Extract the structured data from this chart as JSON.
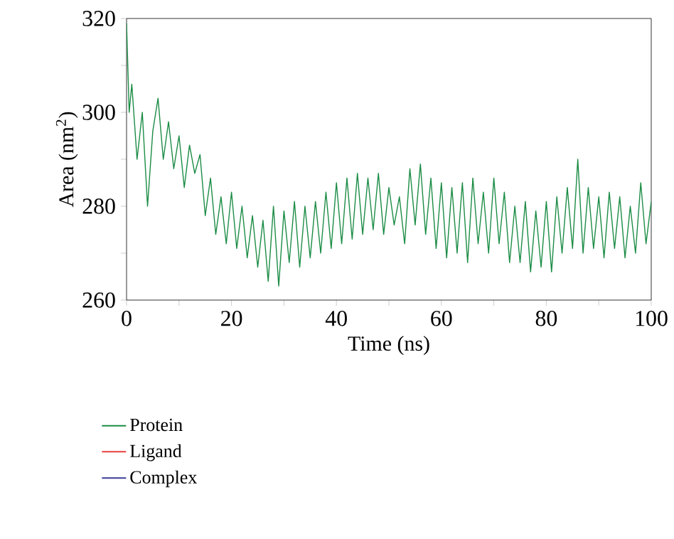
{
  "chart_data": {
    "type": "line",
    "xlabel": "Time (ns)",
    "ylabel": "Area (nm$^{2}$)",
    "xlim": [
      0,
      100
    ],
    "ylim": [
      260,
      320
    ],
    "xticks": [
      0,
      {
        "value": 10,
        "label": null
      },
      20,
      {
        "value": 30,
        "label": null
      },
      40,
      {
        "value": 50,
        "label": null
      },
      60,
      {
        "value": 70,
        "label": null
      },
      80,
      {
        "value": 90,
        "label": null
      },
      100
    ],
    "yticks": [
      260,
      {
        "value": 270,
        "label": null
      },
      280,
      {
        "value": 290,
        "label": null
      },
      300,
      {
        "value": 310,
        "label": null
      },
      320
    ],
    "legend": "bottom",
    "line_style": "solid",
    "series": [
      {
        "name": "Protein",
        "color": "#1b8c45",
        "x": [
          0,
          0.5,
          1,
          2,
          3,
          4,
          5,
          6,
          7,
          8,
          9,
          10,
          11,
          12,
          13,
          14,
          15,
          16,
          17,
          18,
          19,
          20,
          21,
          22,
          23,
          24,
          25,
          26,
          27,
          28,
          29,
          30,
          31,
          32,
          33,
          34,
          35,
          36,
          37,
          38,
          39,
          40,
          41,
          42,
          43,
          44,
          45,
          46,
          47,
          48,
          49,
          50,
          51,
          52,
          53,
          54,
          55,
          56,
          57,
          58,
          59,
          60,
          61,
          62,
          63,
          64,
          65,
          66,
          67,
          68,
          69,
          70,
          71,
          72,
          73,
          74,
          75,
          76,
          77,
          78,
          79,
          80,
          81,
          82,
          83,
          84,
          85,
          86,
          87,
          88,
          89,
          90,
          91,
          92,
          93,
          94,
          95,
          96,
          97,
          98,
          99,
          100
        ],
        "values": [
          319,
          300,
          306,
          290,
          300,
          280,
          296,
          303,
          290,
          298,
          288,
          295,
          284,
          293,
          287,
          291,
          278,
          286,
          274,
          282,
          272,
          283,
          271,
          280,
          269,
          278,
          267,
          277,
          264,
          280,
          263,
          279,
          268,
          281,
          267,
          280,
          269,
          281,
          270,
          283,
          271,
          285,
          272,
          286,
          273,
          287,
          274,
          286,
          275,
          287,
          274,
          284,
          276,
          282,
          272,
          288,
          276,
          289,
          274,
          286,
          271,
          285,
          269,
          284,
          270,
          285,
          268,
          286,
          272,
          283,
          270,
          286,
          272,
          283,
          268,
          280,
          268,
          281,
          266,
          279,
          267,
          281,
          266,
          282,
          270,
          284,
          271,
          290,
          270,
          284,
          271,
          282,
          269,
          283,
          271,
          282,
          269,
          280,
          270,
          285,
          272,
          281
        ]
      },
      {
        "name": "Ligand",
        "color": "#e8413a"
      },
      {
        "name": "Complex",
        "color": "#3a3a9a"
      }
    ]
  }
}
